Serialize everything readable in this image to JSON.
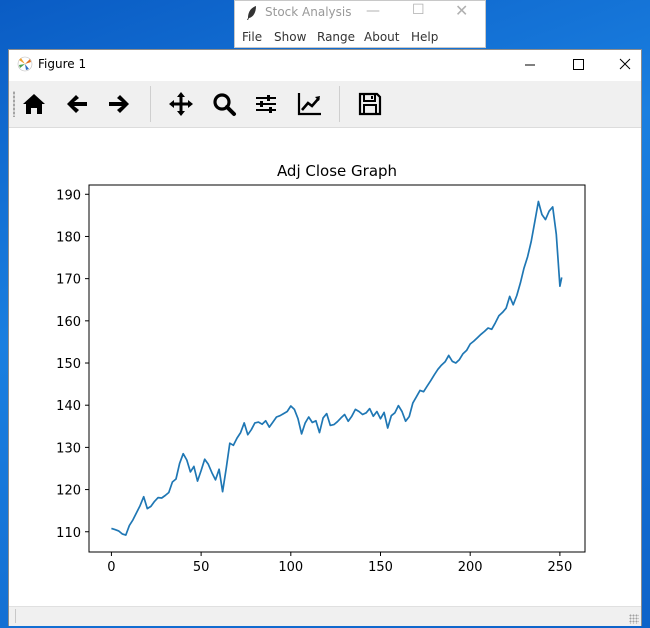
{
  "tk_app": {
    "title": "Stock Analysis",
    "menu": [
      "File",
      "Show",
      "Range",
      "About",
      "Help"
    ]
  },
  "figure_window": {
    "title": "Figure 1",
    "toolbar": [
      "home-icon",
      "back-arrow-icon",
      "forward-arrow-icon",
      "pan-icon",
      "zoom-icon",
      "subplots-icon",
      "edit-axis-icon",
      "save-icon"
    ]
  },
  "colors": {
    "line": "#1f77b4",
    "toolbar": "#f0f0f0",
    "desktop": "#1574d6"
  },
  "chart_data": {
    "type": "line",
    "title": "Adj Close Graph",
    "xlabel": "",
    "ylabel": "",
    "xlim": [
      -12.5,
      264
    ],
    "ylim": [
      105.2,
      192.2
    ],
    "xticks": [
      0,
      50,
      100,
      150,
      200,
      250
    ],
    "yticks": [
      110,
      120,
      130,
      140,
      150,
      160,
      170,
      180,
      190
    ],
    "x": [
      0,
      2,
      4,
      6,
      8,
      10,
      12,
      14,
      16,
      18,
      20,
      22,
      24,
      26,
      28,
      30,
      32,
      34,
      36,
      38,
      40,
      42,
      44,
      46,
      48,
      50,
      52,
      54,
      56,
      58,
      60,
      62,
      64,
      66,
      68,
      70,
      72,
      74,
      76,
      78,
      80,
      82,
      84,
      86,
      88,
      90,
      92,
      94,
      96,
      98,
      100,
      102,
      104,
      106,
      108,
      110,
      112,
      114,
      116,
      118,
      120,
      122,
      124,
      126,
      128,
      130,
      132,
      134,
      136,
      138,
      140,
      142,
      144,
      146,
      148,
      150,
      152,
      154,
      156,
      158,
      160,
      162,
      164,
      166,
      168,
      170,
      172,
      174,
      176,
      178,
      180,
      182,
      184,
      186,
      188,
      190,
      192,
      194,
      196,
      198,
      200,
      202,
      204,
      206,
      208,
      210,
      212,
      214,
      216,
      218,
      220,
      222,
      224,
      226,
      228,
      230,
      232,
      234,
      236,
      238,
      240,
      242,
      244,
      246,
      248,
      250,
      251
    ],
    "values": [
      110.8,
      110.5,
      110.2,
      109.5,
      109.2,
      111.5,
      112.8,
      114.5,
      116.2,
      118.3,
      115.5,
      116.0,
      117.2,
      118.1,
      118.0,
      118.6,
      119.3,
      121.8,
      122.5,
      126.2,
      128.5,
      127.0,
      124.2,
      125.5,
      122.0,
      124.5,
      127.2,
      126.0,
      124.0,
      122.3,
      124.8,
      119.5,
      125.0,
      131.0,
      130.5,
      132.2,
      133.5,
      135.8,
      133.0,
      134.2,
      135.8,
      136.0,
      135.5,
      136.3,
      134.8,
      136.0,
      137.2,
      137.5,
      138.0,
      138.5,
      139.8,
      139.0,
      136.8,
      133.2,
      135.8,
      137.2,
      135.9,
      136.3,
      133.5,
      137.0,
      138.0,
      135.2,
      135.4,
      136.1,
      137.0,
      137.8,
      136.2,
      137.4,
      139.0,
      138.5,
      137.8,
      138.2,
      139.2,
      137.4,
      138.5,
      136.8,
      138.3,
      134.6,
      137.5,
      138.2,
      139.9,
      138.5,
      136.2,
      137.3,
      140.5,
      142.0,
      143.5,
      143.2,
      144.5,
      145.8,
      147.2,
      148.5,
      149.5,
      150.3,
      151.8,
      150.4,
      150.0,
      150.8,
      152.2,
      153.0,
      154.5,
      155.2,
      156.0,
      156.8,
      157.5,
      158.3,
      158.0,
      159.5,
      161.2,
      162.0,
      163.0,
      165.8,
      163.8,
      166.0,
      169.0,
      172.5,
      175.2,
      178.8,
      183.5,
      188.3,
      185.2,
      184.0,
      186.0,
      187.0,
      180.5,
      168.2,
      170.3
    ]
  }
}
